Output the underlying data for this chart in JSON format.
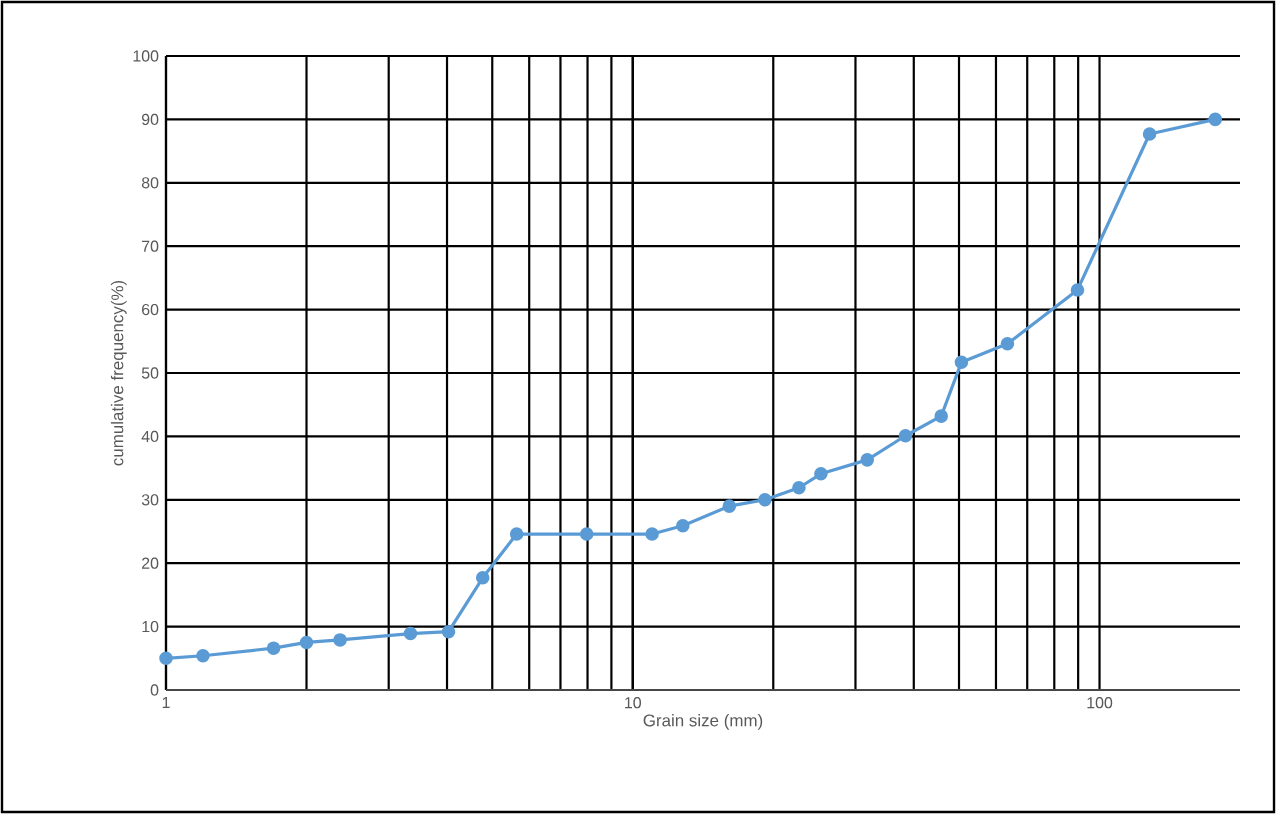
{
  "chart_data": {
    "type": "line",
    "xlabel": "Grain size (mm)",
    "ylabel": "cumulative frequency(%)",
    "x": [
      1,
      1.2,
      1.7,
      2.0,
      2.36,
      3.34,
      4.03,
      4.77,
      5.64,
      7.97,
      11.0,
      12.8,
      16.1,
      19.2,
      22.7,
      25.3,
      31.8,
      38.4,
      45.8,
      50.6,
      63.5,
      89.7,
      128,
      177
    ],
    "series": [
      {
        "color": "#5b9bd5",
        "values": [
          5.0,
          5.4,
          6.6,
          7.5,
          7.9,
          8.9,
          9.2,
          17.7,
          24.6,
          24.6,
          24.6,
          25.9,
          29.0,
          30.0,
          31.9,
          34.1,
          36.3,
          40.1,
          43.2,
          51.7,
          54.6,
          63.1,
          87.7,
          90.0
        ]
      }
    ],
    "log": "x",
    "xlim": [
      1,
      200
    ],
    "xticks": [
      1,
      10,
      100
    ],
    "ylim": [
      0,
      100
    ],
    "yticks": [
      0,
      10,
      20,
      30,
      40,
      50,
      60,
      70,
      80,
      90,
      100
    ],
    "grid": true,
    "marker": "circle",
    "line_style": "solid"
  }
}
